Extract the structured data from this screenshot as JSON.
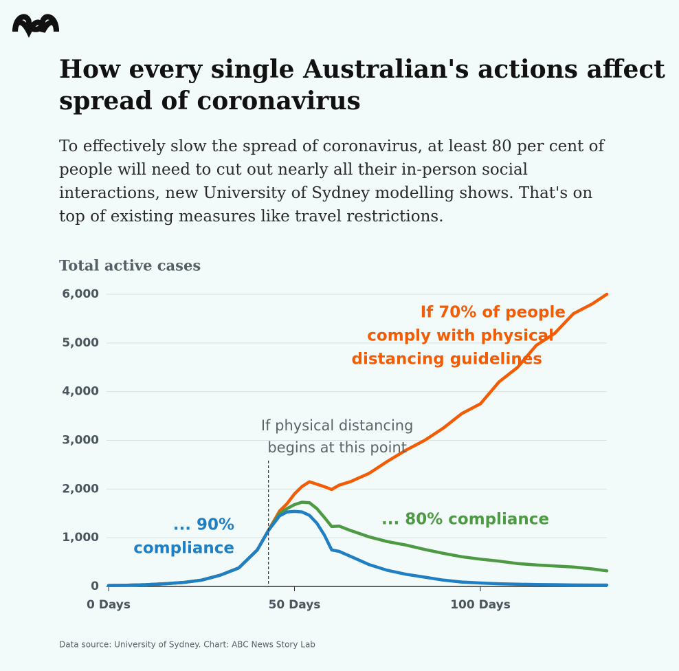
{
  "header": {
    "title_lines": [
      "How every single Australian's actions affect",
      "spread of coronavirus"
    ],
    "subtitle_lines": [
      "To effectively slow the spread of coronavirus, at least 80 per cent of",
      "people will need to cut out nearly all their in-person social",
      "interactions, new University of Sydney modelling shows. That's on",
      "top of existing measures like travel restrictions."
    ],
    "source": "Data source: University of Sydney. Chart: ABC News Story Lab"
  },
  "chart_data": {
    "type": "line",
    "ylabel": "Total active cases",
    "x": [
      0,
      5,
      10,
      15,
      20,
      25,
      30,
      35,
      40,
      43,
      46,
      48,
      50,
      52,
      54,
      56,
      58,
      60,
      62,
      65,
      70,
      75,
      80,
      85,
      90,
      95,
      100,
      105,
      110,
      115,
      120,
      125,
      130,
      134
    ],
    "series": [
      {
        "name": "If 70% of people comply with physical distancing guidelines",
        "label_lines": [
          "If 70% of people",
          "comply with physical",
          "distancing guidelines"
        ],
        "color": "#f25c05",
        "values": [
          20,
          25,
          35,
          55,
          80,
          130,
          230,
          380,
          750,
          1150,
          1550,
          1700,
          1900,
          2050,
          2150,
          2100,
          2050,
          1990,
          2080,
          2150,
          2320,
          2570,
          2800,
          3000,
          3250,
          3550,
          3750,
          4200,
          4500,
          4950,
          5200,
          5600,
          5800,
          6000
        ]
      },
      {
        "name": "... 80% compliance",
        "label_lines": [
          "... 80% compliance"
        ],
        "color": "#4e9a44",
        "values": [
          20,
          25,
          35,
          55,
          80,
          130,
          230,
          380,
          750,
          1150,
          1500,
          1600,
          1680,
          1730,
          1720,
          1600,
          1420,
          1230,
          1240,
          1150,
          1020,
          920,
          850,
          760,
          680,
          610,
          560,
          520,
          470,
          440,
          420,
          400,
          360,
          320
        ]
      },
      {
        "name": "... 90% compliance",
        "label_lines": [
          "... 90%",
          "compliance"
        ],
        "color": "#1f7fc2",
        "values": [
          20,
          25,
          35,
          55,
          80,
          130,
          230,
          380,
          750,
          1150,
          1450,
          1530,
          1540,
          1530,
          1460,
          1300,
          1060,
          750,
          720,
          620,
          450,
          330,
          250,
          190,
          130,
          90,
          70,
          55,
          45,
          40,
          35,
          30,
          28,
          28
        ]
      }
    ],
    "annotations": [
      {
        "lines": [
          "If physical distancing",
          "begins at this point"
        ],
        "x": 43
      }
    ],
    "xlim": [
      0,
      134
    ],
    "ylim": [
      0,
      6000
    ],
    "xticks": [
      {
        "value": 0,
        "label": "0 Days"
      },
      {
        "value": 50,
        "label": "50 Days"
      },
      {
        "value": 100,
        "label": "100 Days"
      }
    ],
    "yticks": [
      0,
      {
        "value": 1000,
        "label": "1,000"
      },
      {
        "value": 2000,
        "label": "2,000"
      },
      {
        "value": 3000,
        "label": "3,000"
      },
      {
        "value": 4000,
        "label": "4,000"
      },
      {
        "value": 5000,
        "label": "5,000"
      },
      {
        "value": 6000,
        "label": "6,000"
      }
    ],
    "grid": true
  }
}
